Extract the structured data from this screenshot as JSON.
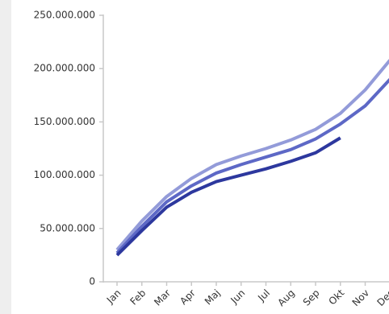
{
  "chart_data": {
    "type": "line",
    "categories": [
      "Jan",
      "Feb",
      "Mar",
      "Apr",
      "Maj",
      "Jun",
      "Jul",
      "Aug",
      "Sep",
      "Okt",
      "Nov",
      "Dec"
    ],
    "series": [
      {
        "color": "#939bd9",
        "values": [
          30000000,
          57000000,
          80000000,
          97000000,
          110000000,
          118000000,
          125000000,
          133000000,
          143000000,
          158000000,
          180000000,
          208000000
        ]
      },
      {
        "color": "#5d68c6",
        "values": [
          27000000,
          52000000,
          75000000,
          90000000,
          102000000,
          110000000,
          117000000,
          124000000,
          134000000,
          148000000,
          165000000,
          190000000
        ]
      },
      {
        "color": "#2d389e",
        "values": [
          25000000,
          48000000,
          70000000,
          84000000,
          94000000,
          100000000,
          106000000,
          113000000,
          121000000,
          135000000,
          null,
          null
        ]
      }
    ],
    "ylim": [
      0,
      250000000
    ],
    "yticks": [
      0,
      {
        "value": 50000000,
        "label": "50.000.000"
      },
      {
        "value": 100000000,
        "label": "100.000.000"
      },
      {
        "value": 150000000,
        "label": "150.000.000"
      },
      {
        "value": 200000000,
        "label": "200.000.000"
      },
      {
        "value": 250000000,
        "label": "250.000.000"
      }
    ]
  }
}
